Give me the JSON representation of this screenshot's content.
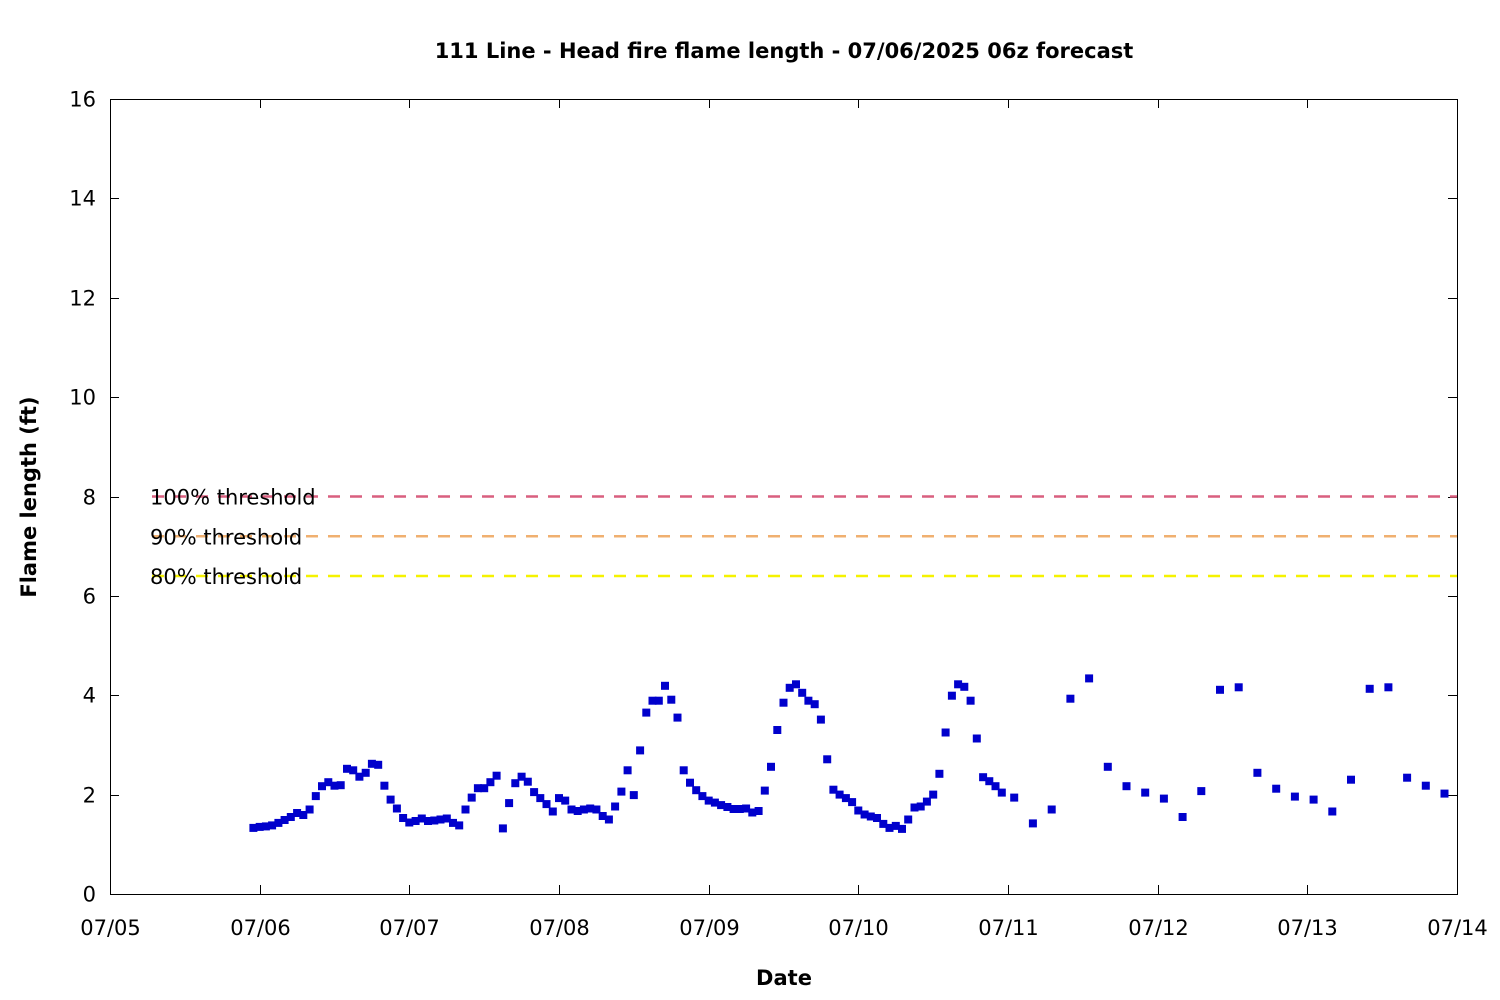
{
  "chart_data": {
    "type": "scatter",
    "title": "111 Line - Head fire flame length - 07/06/2025 06z forecast",
    "xlabel": "Date",
    "ylabel": "Flame length (ft)",
    "xlim": [
      "2025-07-05 00:00",
      "2025-07-14 00:00"
    ],
    "ylim": [
      0,
      16
    ],
    "x_ticks": [
      "07/05",
      "07/06",
      "07/07",
      "07/08",
      "07/09",
      "07/10",
      "07/11",
      "07/12",
      "07/13",
      "07/14"
    ],
    "y_ticks": [
      0,
      2,
      4,
      6,
      8,
      10,
      12,
      14,
      16
    ],
    "grid": false,
    "marker": "square",
    "marker_color": "#0000cc",
    "thresholds": [
      {
        "label": "100% threshold",
        "value": 8.0,
        "color": "#d95f7f",
        "style": "dashed"
      },
      {
        "label": "90% threshold",
        "value": 7.2,
        "color": "#f0b070",
        "style": "dashed"
      },
      {
        "label": "80% threshold",
        "value": 6.4,
        "color": "#f5f200",
        "style": "dashed"
      }
    ],
    "series": [
      {
        "points": [
          [
            "2025-07-05 23:00",
            1.33
          ],
          [
            "2025-07-06 00:00",
            1.35
          ],
          [
            "2025-07-06 01:00",
            1.36
          ],
          [
            "2025-07-06 02:00",
            1.38
          ],
          [
            "2025-07-06 03:00",
            1.43
          ],
          [
            "2025-07-06 04:00",
            1.49
          ],
          [
            "2025-07-06 05:00",
            1.55
          ],
          [
            "2025-07-06 06:00",
            1.63
          ],
          [
            "2025-07-06 07:00",
            1.59
          ],
          [
            "2025-07-06 08:00",
            1.7
          ],
          [
            "2025-07-06 09:00",
            1.97
          ],
          [
            "2025-07-06 10:00",
            2.17
          ],
          [
            "2025-07-06 11:00",
            2.25
          ],
          [
            "2025-07-06 12:00",
            2.18
          ],
          [
            "2025-07-06 13:00",
            2.19
          ],
          [
            "2025-07-06 14:00",
            2.52
          ],
          [
            "2025-07-06 15:00",
            2.49
          ],
          [
            "2025-07-06 16:00",
            2.36
          ],
          [
            "2025-07-06 17:00",
            2.44
          ],
          [
            "2025-07-06 18:00",
            2.62
          ],
          [
            "2025-07-06 19:00",
            2.6
          ],
          [
            "2025-07-06 20:00",
            2.18
          ],
          [
            "2025-07-06 21:00",
            1.9
          ],
          [
            "2025-07-06 22:00",
            1.72
          ],
          [
            "2025-07-06 23:00",
            1.53
          ],
          [
            "2025-07-07 00:00",
            1.44
          ],
          [
            "2025-07-07 01:00",
            1.47
          ],
          [
            "2025-07-07 02:00",
            1.52
          ],
          [
            "2025-07-07 03:00",
            1.47
          ],
          [
            "2025-07-07 04:00",
            1.48
          ],
          [
            "2025-07-07 05:00",
            1.5
          ],
          [
            "2025-07-07 06:00",
            1.52
          ],
          [
            "2025-07-07 07:00",
            1.43
          ],
          [
            "2025-07-07 08:00",
            1.38
          ],
          [
            "2025-07-07 09:00",
            1.7
          ],
          [
            "2025-07-07 10:00",
            1.94
          ],
          [
            "2025-07-07 11:00",
            2.13
          ],
          [
            "2025-07-07 12:00",
            2.13
          ],
          [
            "2025-07-07 13:00",
            2.25
          ],
          [
            "2025-07-07 14:00",
            2.38
          ],
          [
            "2025-07-07 15:00",
            1.32
          ],
          [
            "2025-07-07 16:00",
            1.83
          ],
          [
            "2025-07-07 17:00",
            2.23
          ],
          [
            "2025-07-07 18:00",
            2.36
          ],
          [
            "2025-07-07 19:00",
            2.26
          ],
          [
            "2025-07-07 20:00",
            2.05
          ],
          [
            "2025-07-07 21:00",
            1.93
          ],
          [
            "2025-07-07 22:00",
            1.81
          ],
          [
            "2025-07-07 23:00",
            1.66
          ],
          [
            "2025-07-08 00:00",
            1.93
          ],
          [
            "2025-07-08 01:00",
            1.88
          ],
          [
            "2025-07-08 02:00",
            1.7
          ],
          [
            "2025-07-08 03:00",
            1.67
          ],
          [
            "2025-07-08 04:00",
            1.7
          ],
          [
            "2025-07-08 05:00",
            1.72
          ],
          [
            "2025-07-08 06:00",
            1.7
          ],
          [
            "2025-07-08 07:00",
            1.57
          ],
          [
            "2025-07-08 08:00",
            1.5
          ],
          [
            "2025-07-08 09:00",
            1.76
          ],
          [
            "2025-07-08 10:00",
            2.06
          ],
          [
            "2025-07-08 11:00",
            2.49
          ],
          [
            "2025-07-08 12:00",
            1.99
          ],
          [
            "2025-07-08 13:00",
            2.89
          ],
          [
            "2025-07-08 14:00",
            3.65
          ],
          [
            "2025-07-08 15:00",
            3.89
          ],
          [
            "2025-07-08 16:00",
            3.89
          ],
          [
            "2025-07-08 17:00",
            4.19
          ],
          [
            "2025-07-08 18:00",
            3.91
          ],
          [
            "2025-07-08 19:00",
            3.55
          ],
          [
            "2025-07-08 20:00",
            2.49
          ],
          [
            "2025-07-08 21:00",
            2.24
          ],
          [
            "2025-07-08 22:00",
            2.09
          ],
          [
            "2025-07-08 23:00",
            1.97
          ],
          [
            "2025-07-09 00:00",
            1.88
          ],
          [
            "2025-07-09 01:00",
            1.84
          ],
          [
            "2025-07-09 02:00",
            1.79
          ],
          [
            "2025-07-09 03:00",
            1.75
          ],
          [
            "2025-07-09 04:00",
            1.71
          ],
          [
            "2025-07-09 05:00",
            1.71
          ],
          [
            "2025-07-09 06:00",
            1.72
          ],
          [
            "2025-07-09 07:00",
            1.64
          ],
          [
            "2025-07-09 08:00",
            1.67
          ],
          [
            "2025-07-09 09:00",
            2.08
          ],
          [
            "2025-07-09 10:00",
            2.56
          ],
          [
            "2025-07-09 11:00",
            3.3
          ],
          [
            "2025-07-09 12:00",
            3.85
          ],
          [
            "2025-07-09 13:00",
            4.15
          ],
          [
            "2025-07-09 14:00",
            4.22
          ],
          [
            "2025-07-09 15:00",
            4.05
          ],
          [
            "2025-07-09 16:00",
            3.89
          ],
          [
            "2025-07-09 17:00",
            3.82
          ],
          [
            "2025-07-09 18:00",
            3.51
          ],
          [
            "2025-07-09 19:00",
            2.71
          ],
          [
            "2025-07-09 20:00",
            2.1
          ],
          [
            "2025-07-09 21:00",
            2.0
          ],
          [
            "2025-07-09 22:00",
            1.93
          ],
          [
            "2025-07-09 23:00",
            1.85
          ],
          [
            "2025-07-10 00:00",
            1.68
          ],
          [
            "2025-07-10 01:00",
            1.6
          ],
          [
            "2025-07-10 02:00",
            1.56
          ],
          [
            "2025-07-10 03:00",
            1.53
          ],
          [
            "2025-07-10 04:00",
            1.41
          ],
          [
            "2025-07-10 05:00",
            1.33
          ],
          [
            "2025-07-10 06:00",
            1.37
          ],
          [
            "2025-07-10 07:00",
            1.31
          ],
          [
            "2025-07-10 08:00",
            1.5
          ],
          [
            "2025-07-10 09:00",
            1.74
          ],
          [
            "2025-07-10 10:00",
            1.76
          ],
          [
            "2025-07-10 11:00",
            1.86
          ],
          [
            "2025-07-10 12:00",
            2.0
          ],
          [
            "2025-07-10 13:00",
            2.42
          ],
          [
            "2025-07-10 14:00",
            3.25
          ],
          [
            "2025-07-10 15:00",
            3.99
          ],
          [
            "2025-07-10 16:00",
            4.22
          ],
          [
            "2025-07-10 17:00",
            4.17
          ],
          [
            "2025-07-10 18:00",
            3.89
          ],
          [
            "2025-07-10 19:00",
            3.13
          ],
          [
            "2025-07-10 20:00",
            2.35
          ],
          [
            "2025-07-10 21:00",
            2.27
          ],
          [
            "2025-07-10 22:00",
            2.17
          ],
          [
            "2025-07-10 23:00",
            2.04
          ],
          [
            "2025-07-11 01:00",
            1.94
          ],
          [
            "2025-07-11 04:00",
            1.42
          ],
          [
            "2025-07-11 07:00",
            1.7
          ],
          [
            "2025-07-11 10:00",
            3.93
          ],
          [
            "2025-07-11 13:00",
            4.34
          ],
          [
            "2025-07-11 16:00",
            2.56
          ],
          [
            "2025-07-11 19:00",
            2.17
          ],
          [
            "2025-07-11 22:00",
            2.04
          ],
          [
            "2025-07-12 01:00",
            1.92
          ],
          [
            "2025-07-12 04:00",
            1.55
          ],
          [
            "2025-07-12 07:00",
            2.07
          ],
          [
            "2025-07-12 10:00",
            4.11
          ],
          [
            "2025-07-12 13:00",
            4.16
          ],
          [
            "2025-07-12 16:00",
            2.44
          ],
          [
            "2025-07-12 19:00",
            2.12
          ],
          [
            "2025-07-12 22:00",
            1.96
          ],
          [
            "2025-07-13 01:00",
            1.9
          ],
          [
            "2025-07-13 04:00",
            1.66
          ],
          [
            "2025-07-13 07:00",
            2.3
          ],
          [
            "2025-07-13 10:00",
            4.13
          ],
          [
            "2025-07-13 13:00",
            4.16
          ],
          [
            "2025-07-13 16:00",
            2.34
          ],
          [
            "2025-07-13 19:00",
            2.18
          ],
          [
            "2025-07-13 22:00",
            2.02
          ]
        ]
      }
    ]
  }
}
